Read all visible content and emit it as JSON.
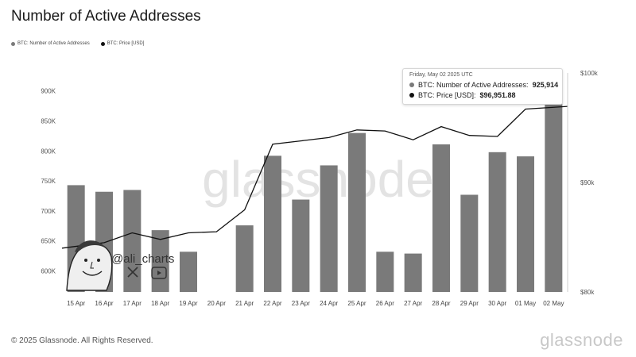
{
  "header": {
    "title": "Number of Active Addresses"
  },
  "legend": [
    {
      "label": "BTC: Number of Active Addresses",
      "color": "#7a7a7a"
    },
    {
      "label": "BTC: Price [USD]",
      "color": "#111111"
    }
  ],
  "tooltip": {
    "date": "Friday, May 02 2025 UTC",
    "rows": [
      {
        "label": "BTC: Number of Active Addresses:",
        "value": "925,914",
        "color": "#7a7a7a"
      },
      {
        "label": "BTC: Price [USD]:",
        "value": "$96,951.88",
        "color": "#111111"
      }
    ]
  },
  "watermark": "glassnode",
  "overlay": {
    "handle": "@ali_charts",
    "icons": [
      "avatar-illustration",
      "x-icon",
      "youtube-icon"
    ]
  },
  "footer": {
    "copyright": "© 2025 Glassnode. All Rights Reserved.",
    "brand": "glassnode"
  },
  "chart_data": {
    "type": "bar",
    "title": "Number of Active Addresses",
    "categories": [
      "15 Apr",
      "16 Apr",
      "17 Apr",
      "18 Apr",
      "19 Apr",
      "20 Apr",
      "21 Apr",
      "22 Apr",
      "23 Apr",
      "24 Apr",
      "25 Apr",
      "26 Apr",
      "27 Apr",
      "28 Apr",
      "29 Apr",
      "30 Apr",
      "01 May",
      "02 May"
    ],
    "series": [
      {
        "name": "BTC: Number of Active Addresses",
        "type": "bar",
        "axis": "left",
        "color": "#7a7a7a",
        "values": [
          743000,
          732000,
          735000,
          668000,
          632000,
          565000,
          676000,
          792000,
          719000,
          776000,
          830000,
          632000,
          629000,
          811000,
          727000,
          798000,
          791000,
          925914
        ]
      },
      {
        "name": "BTC: Price [USD]",
        "type": "line",
        "axis": "right",
        "color": "#111111",
        "values": [
          84000,
          84500,
          85400,
          84800,
          85400,
          85500,
          87500,
          93500,
          93800,
          94100,
          94800,
          94700,
          93900,
          95100,
          94300,
          94200,
          96700,
          96951.88
        ]
      }
    ],
    "y_left": {
      "ticks": [
        600000,
        650000,
        700000,
        750000,
        800000,
        850000,
        900000
      ],
      "tick_labels": [
        "600K",
        "650K",
        "700K",
        "750K",
        "800K",
        "850K",
        "900K"
      ],
      "range": [
        565000,
        930000
      ]
    },
    "y_right": {
      "ticks": [
        80000,
        90000,
        100000
      ],
      "tick_labels": [
        "$80k",
        "$90k",
        "$100k"
      ],
      "range": [
        80000,
        100000
      ]
    },
    "grid": false,
    "legend_position": "top-left"
  }
}
